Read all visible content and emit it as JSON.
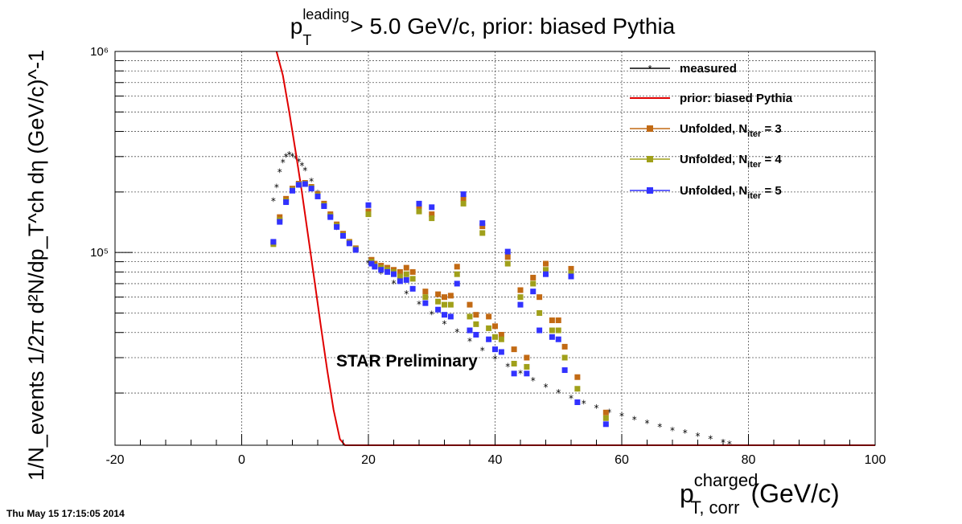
{
  "chart_data": {
    "type": "scatter",
    "title": "> 5.0 GeV/c, prior: biased Pythia",
    "title_symbol": "p",
    "title_sub": "T",
    "title_sup": "leading",
    "xlabel_main": "p",
    "xlabel_sup": "charged",
    "xlabel_sub": "T, corr",
    "xlabel_unit": "(GeV/c)",
    "ylabel": "1/N_events 1/2π d²N/dp_T^ch dη (GeV/c)^-1",
    "xlim": [
      -20,
      100
    ],
    "ylim": [
      11000,
      1000000
    ],
    "yscale": "log",
    "grid": true,
    "legend_position": "top-right",
    "x_ticks": [
      "-20",
      "0",
      "20",
      "40",
      "60",
      "80",
      "100"
    ],
    "y_ticks": [
      "10⁵",
      "10⁶"
    ],
    "annotation": "STAR Preliminary",
    "legend": [
      {
        "label": "measured",
        "color": "#000000",
        "marker": "star"
      },
      {
        "label": "prior: biased Pythia",
        "color": "#e00000",
        "marker": "line"
      },
      {
        "label": "Unfolded, N",
        "sub": "iter",
        "suffix": " = 3",
        "color": "#c26a14",
        "marker": "square"
      },
      {
        "label": "Unfolded, N",
        "sub": "iter",
        "suffix": " = 4",
        "color": "#a0a01a",
        "marker": "square"
      },
      {
        "label": "Unfolded, N",
        "sub": "iter",
        "suffix": " = 5",
        "color": "#3232ff",
        "marker": "square"
      }
    ],
    "series": [
      {
        "name": "measured",
        "color": "#000000",
        "x": [
          5,
          5.5,
          6,
          6.5,
          7,
          7.5,
          8,
          8.5,
          9,
          9.5,
          10,
          11,
          12,
          13,
          14,
          15,
          16,
          18,
          20,
          22,
          24,
          26,
          28,
          30,
          32,
          34,
          36,
          38,
          40,
          42,
          44,
          46,
          48,
          50,
          52,
          54,
          56,
          58,
          60,
          62,
          64,
          66,
          68,
          70,
          72,
          74,
          76,
          77
        ],
        "y": [
          180000,
          210000,
          250000,
          280000,
          298000,
          305000,
          300000,
          292000,
          282000,
          270000,
          255000,
          225000,
          196000,
          170000,
          148000,
          130000,
          118000,
          101000,
          88000,
          78000,
          70000,
          62000,
          55000,
          49000,
          44000,
          40000,
          36000,
          32500,
          29500,
          27000,
          25000,
          23000,
          21300,
          20000,
          18800,
          17700,
          16800,
          16000,
          15300,
          14700,
          14100,
          13500,
          13000,
          12600,
          12200,
          11800,
          11300,
          11100
        ]
      },
      {
        "name": "prior: biased Pythia",
        "color": "#e00000",
        "x": [
          5.5,
          6.5,
          7.5,
          8.5,
          9.5,
          10.5,
          11.5,
          12.5,
          13.5,
          14.5,
          15.5,
          16.3,
          20,
          30,
          40,
          50,
          60,
          70,
          80,
          90,
          100
        ],
        "y": [
          1000000,
          760000,
          500000,
          320000,
          200000,
          120000,
          72000,
          43000,
          26000,
          16500,
          11800,
          11000,
          11000,
          11000,
          11000,
          11000,
          11000,
          11000,
          11000,
          11000,
          11000
        ]
      },
      {
        "name": "Unfolded, N iter = 3",
        "color": "#c26a14",
        "x": [
          5,
          6,
          7,
          8,
          9,
          10,
          11,
          12,
          13,
          14,
          15,
          16,
          17,
          18,
          20,
          20.5,
          21,
          22,
          23,
          24,
          25,
          26,
          27,
          28,
          29,
          30,
          31,
          32,
          33,
          34,
          35,
          36,
          37,
          38,
          39,
          40,
          41,
          42,
          43,
          44,
          45,
          46,
          47,
          48,
          49,
          50,
          51,
          52,
          53,
          57.5
        ],
        "y": [
          112000,
          150000,
          185000,
          208000,
          220000,
          222000,
          212000,
          195000,
          175000,
          155000,
          138000,
          124000,
          113000,
          105000,
          160000,
          92000,
          88000,
          86000,
          84000,
          82000,
          80000,
          84000,
          80000,
          168000,
          64000,
          155000,
          62000,
          60000,
          61000,
          85000,
          185000,
          55000,
          49000,
          135000,
          48000,
          43000,
          39000,
          95000,
          33000,
          65000,
          30000,
          75000,
          60000,
          88000,
          46000,
          46000,
          34000,
          83000,
          24000,
          16000
        ]
      },
      {
        "name": "Unfolded, N iter = 4",
        "color": "#a0a01a",
        "x": [
          5,
          6,
          7,
          8,
          9,
          10,
          11,
          12,
          13,
          14,
          15,
          16,
          17,
          18,
          20,
          20.5,
          21,
          22,
          23,
          24,
          25,
          26,
          27,
          28,
          29,
          30,
          31,
          32,
          33,
          34,
          35,
          36,
          37,
          38,
          39,
          40,
          41,
          42,
          43,
          44,
          45,
          46,
          47,
          48,
          49,
          50,
          51,
          52,
          53,
          57.5
        ],
        "y": [
          110000,
          145000,
          180000,
          205000,
          218000,
          220000,
          210000,
          192000,
          172000,
          152000,
          136000,
          122000,
          112000,
          104000,
          155000,
          90000,
          86000,
          84000,
          82000,
          80000,
          76000,
          78000,
          74000,
          160000,
          60000,
          148000,
          57000,
          55000,
          55000,
          78000,
          175000,
          48000,
          44000,
          125000,
          42000,
          38000,
          37000,
          88000,
          28000,
          60000,
          27000,
          70000,
          50000,
          82000,
          41000,
          41000,
          30000,
          79000,
          21000,
          15000
        ]
      },
      {
        "name": "Unfolded, N iter = 5",
        "color": "#3232ff",
        "x": [
          5,
          6,
          7,
          8,
          9,
          10,
          11,
          12,
          13,
          14,
          15,
          16,
          17,
          18,
          20,
          20.5,
          21,
          22,
          23,
          24,
          25,
          26,
          27,
          28,
          29,
          30,
          31,
          32,
          33,
          34,
          35,
          36,
          37,
          38,
          39,
          40,
          41,
          42,
          43,
          44,
          45,
          46,
          47,
          48,
          49,
          50,
          51,
          52,
          53,
          57.5
        ],
        "y": [
          113000,
          142000,
          178000,
          203000,
          217000,
          219000,
          208000,
          190000,
          170000,
          150000,
          134000,
          121000,
          111000,
          103000,
          172000,
          88000,
          85000,
          82000,
          80000,
          78000,
          72000,
          73000,
          66000,
          175000,
          56000,
          168000,
          52000,
          49000,
          48000,
          70000,
          195000,
          41000,
          39000,
          140000,
          37000,
          33000,
          32000,
          101000,
          25000,
          55000,
          25000,
          64000,
          41000,
          78000,
          38000,
          37000,
          26000,
          76000,
          18000,
          14000
        ]
      }
    ]
  },
  "timestamp": "Thu May 15 17:15:05 2014"
}
